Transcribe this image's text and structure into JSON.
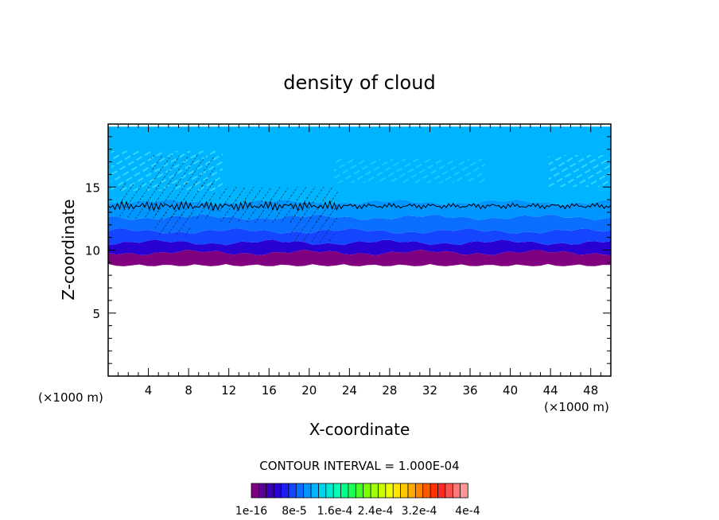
{
  "chart_data": {
    "type": "heatmap",
    "title": "density of cloud",
    "xlabel": "X-coordinate",
    "ylabel": "Z-coordinate",
    "x_unit_left": "(×1000 m)",
    "x_unit_right": "(×1000 m)",
    "xlim": [
      0,
      50
    ],
    "ylim": [
      0,
      20
    ],
    "x_ticks": [
      "4",
      "8",
      "12",
      "16",
      "20",
      "24",
      "28",
      "32",
      "36",
      "40",
      "44",
      "48"
    ],
    "y_ticks": [
      "5",
      "10",
      "15"
    ],
    "x_tick_values": [
      4,
      8,
      12,
      16,
      20,
      24,
      28,
      32,
      36,
      40,
      44,
      48
    ],
    "y_tick_values": [
      5,
      10,
      15
    ],
    "cloud_base_z": 8.9,
    "cloud_top_z": 19.8,
    "contour_line_z": 13.5,
    "contour_interval_label": "CONTOUR INTERVAL = 1.000E-04",
    "colorbar": {
      "labels": [
        "1e-16",
        "8e-5",
        "1.6e-4",
        "2.4e-4",
        "3.2e-4",
        "4e-4"
      ],
      "colors": [
        "#800080",
        "#5a0096",
        "#3c00b4",
        "#2800d2",
        "#1e1ef0",
        "#1446ff",
        "#0a6eff",
        "#0096ff",
        "#00b4ff",
        "#00d2f0",
        "#00ebd2",
        "#00ffb4",
        "#00ff8c",
        "#1eff5a",
        "#46ff28",
        "#78ff00",
        "#a0ff00",
        "#c8ff00",
        "#f0ff00",
        "#ffe600",
        "#ffc800",
        "#ffaa00",
        "#ff8200",
        "#ff5a00",
        "#ff3200",
        "#ff2828",
        "#ff5050",
        "#ff7878",
        "#ff9696"
      ]
    },
    "layers": [
      {
        "z_bottom": 8.9,
        "z_top": 9.8,
        "color": "#800080"
      },
      {
        "z_bottom": 9.8,
        "z_top": 10.6,
        "color": "#2800d2"
      },
      {
        "z_bottom": 10.6,
        "z_top": 11.5,
        "color": "#1446ff"
      },
      {
        "z_bottom": 11.5,
        "z_top": 12.6,
        "color": "#0a6eff"
      },
      {
        "z_bottom": 12.6,
        "z_top": 13.8,
        "color": "#0096ff"
      },
      {
        "z_bottom": 13.8,
        "z_top": 19.8,
        "color": "#00b4ff"
      }
    ]
  }
}
